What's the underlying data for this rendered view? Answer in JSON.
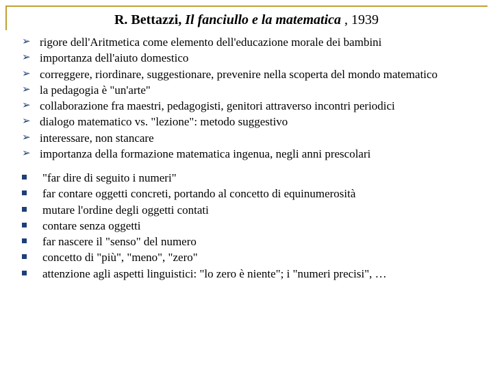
{
  "colors": {
    "frame": "#c0a030",
    "bullet": "#1f3f77",
    "text": "#000000",
    "background": "#ffffff"
  },
  "typography": {
    "family": "Times New Roman",
    "title_fontsize": 20,
    "body_fontsize": 17
  },
  "title": {
    "author": "R. Bettazzi,",
    "book": "Il fanciullo e la matematica",
    "year": ", 1939"
  },
  "arrows": [
    "rigore dell'Aritmetica come elemento dell'educazione morale dei bambini",
    "importanza dell'aiuto domestico",
    "correggere, riordinare, suggestionare, prevenire nella scoperta del mondo matematico",
    "la pedagogia è \"un'arte\"",
    "collaborazione fra maestri, pedagogisti, genitori attraverso incontri periodici",
    "dialogo matematico vs. \"lezione\": metodo suggestivo",
    "interessare, non stancare",
    "importanza della formazione matematica ingenua, negli anni prescolari"
  ],
  "squares": [
    "\"far dire di seguito i numeri\"",
    "far contare oggetti concreti, portando al concetto di equinumerosità",
    "mutare l'ordine degli oggetti contati",
    "contare senza oggetti",
    "far nascere il \"senso\" del numero",
    "concetto di \"più\", \"meno\", \"zero\"",
    "attenzione agli aspetti linguistici: \"lo zero  è niente\"; i \"numeri precisi\", …"
  ]
}
